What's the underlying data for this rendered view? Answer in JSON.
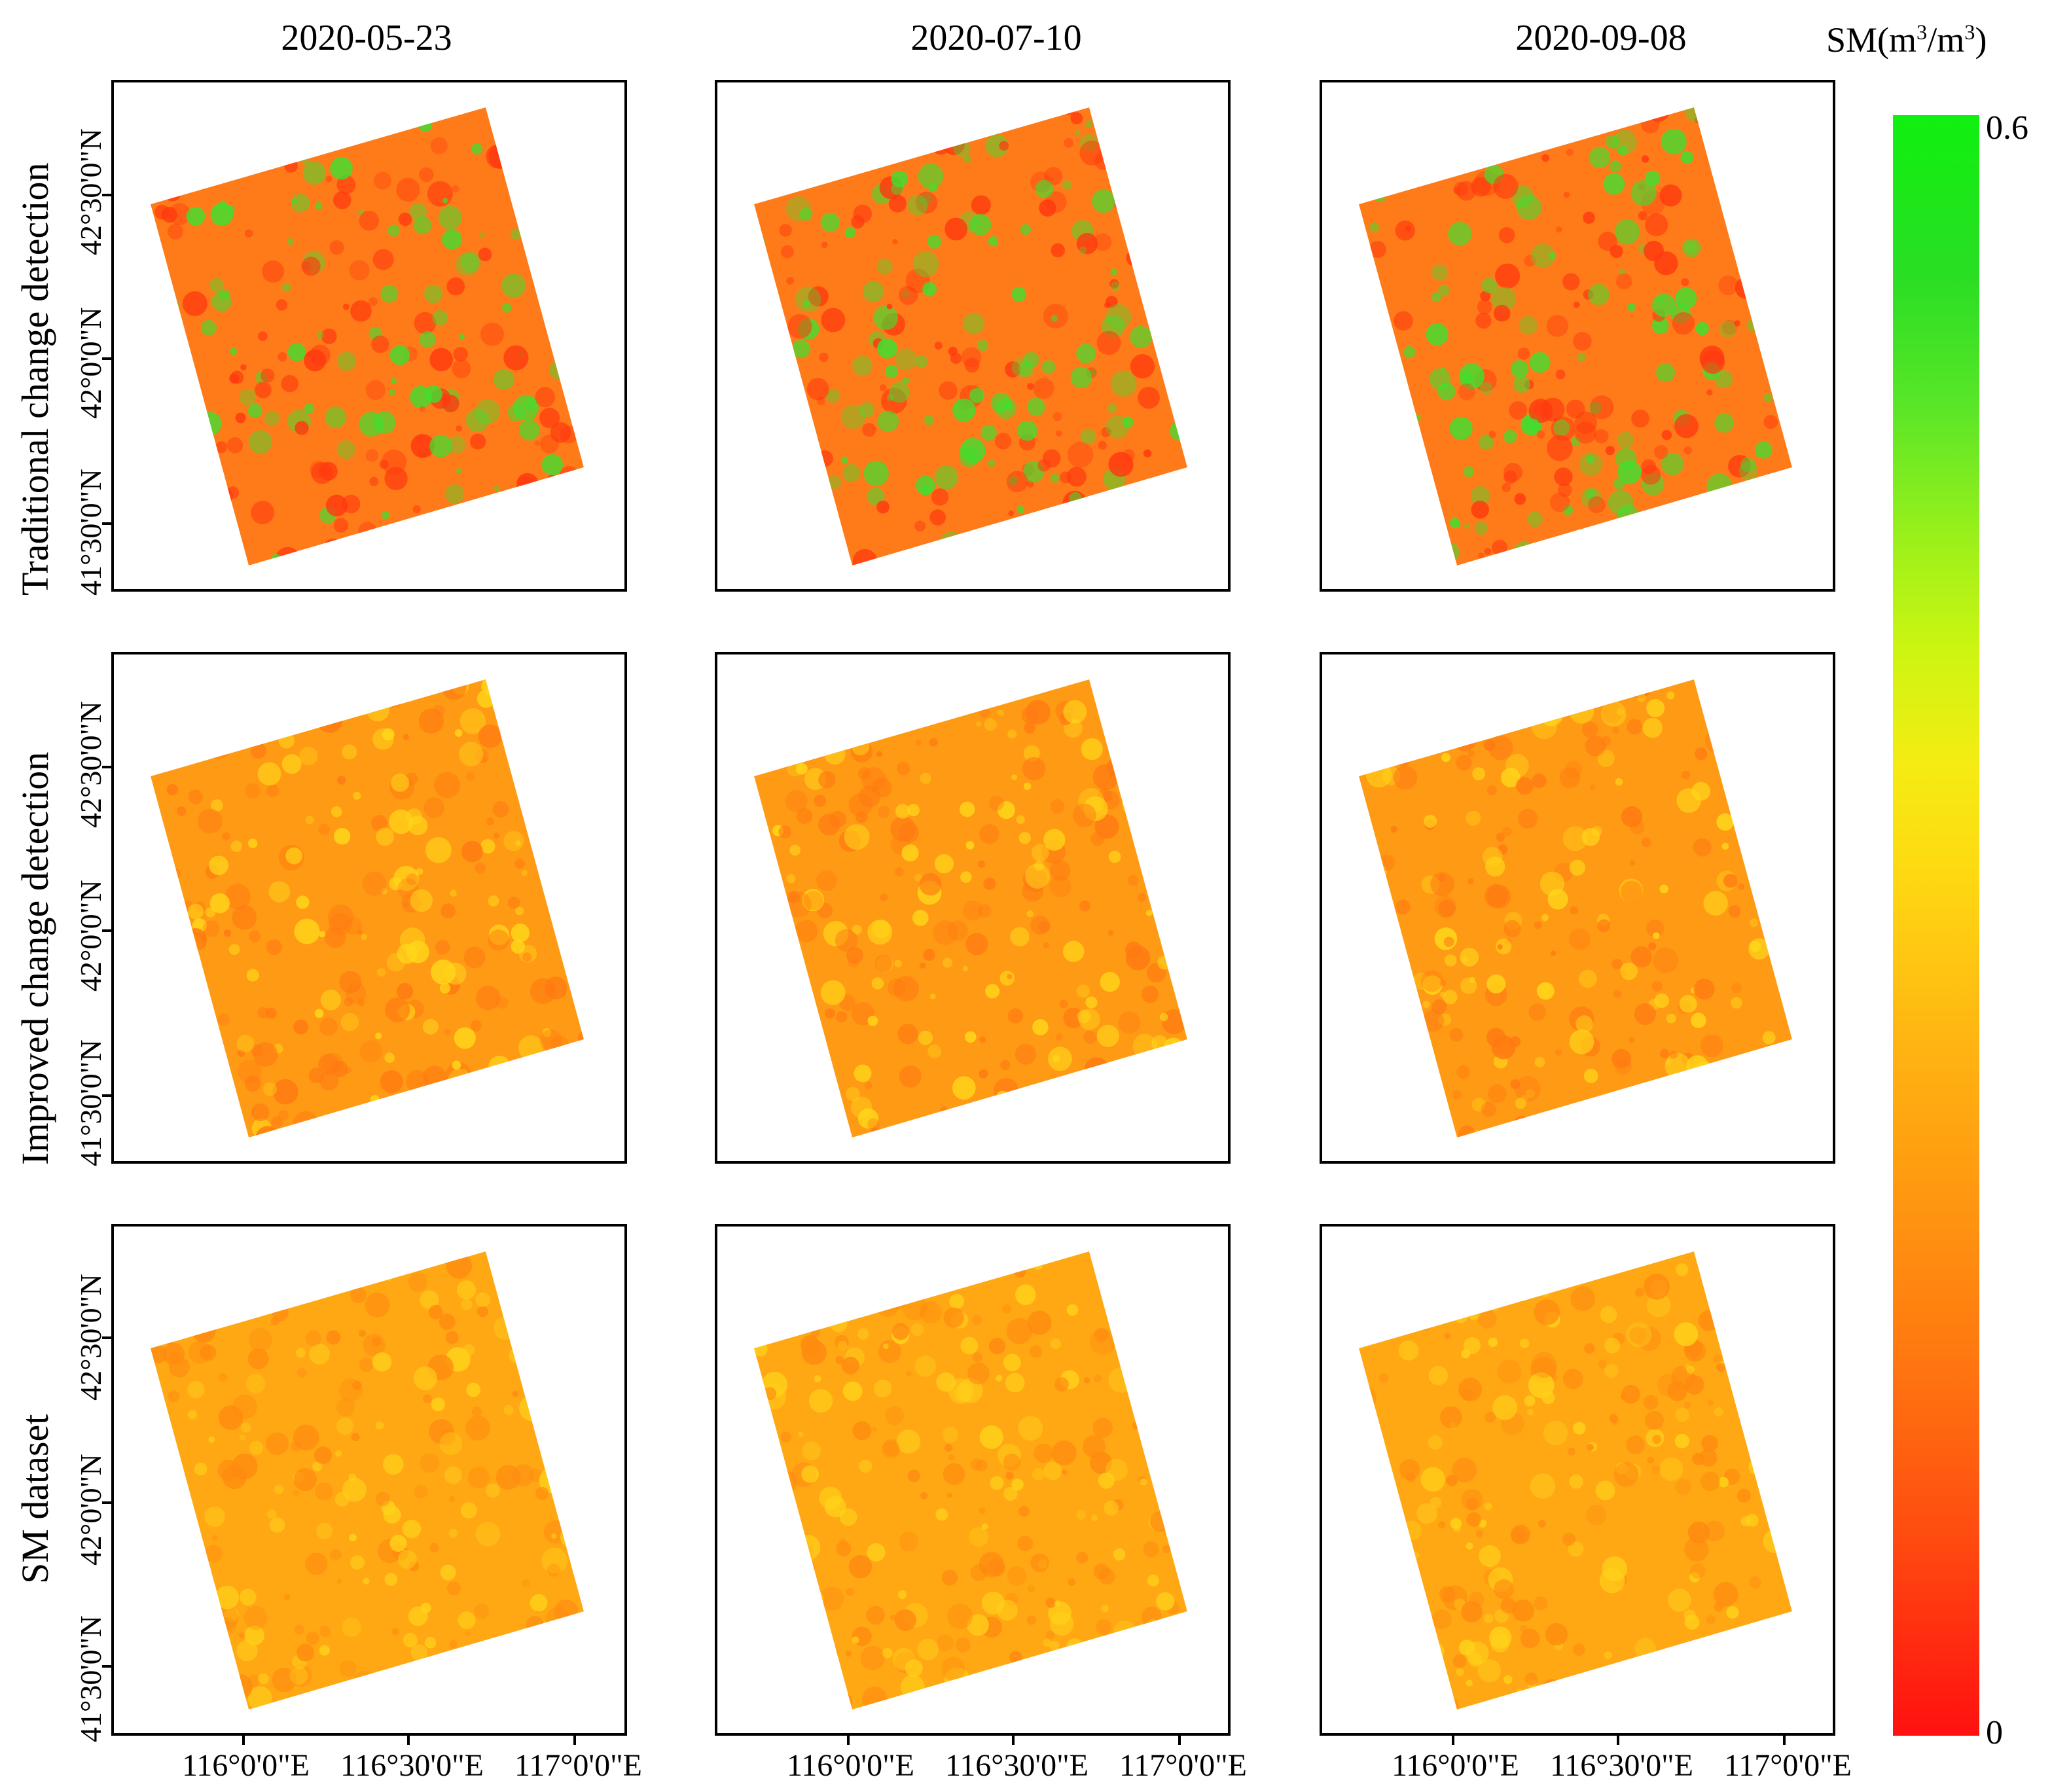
{
  "columns": [
    "2020-05-23",
    "2020-07-10",
    "2020-09-08"
  ],
  "rows": [
    "Traditional change detection",
    "Improved change detection",
    "SM dataset"
  ],
  "latitude_ticks": [
    "42°30'0\"N",
    "42°0'0\"N",
    "41°30'0\"N"
  ],
  "longitude_ticks": [
    "116°0'0\"E",
    "116°30'0\"E",
    "117°0'0\"E"
  ],
  "colorbar": {
    "title_prefix": "SM(m",
    "title_exp1": "3",
    "title_mid": "/m",
    "title_exp2": "3",
    "title_suffix": ")",
    "max_label": "0.6",
    "min_label": "0",
    "min_value": 0,
    "max_value": 0.6,
    "colors": {
      "low": "#ff1010",
      "mid": "#ffd812",
      "high": "#10f010"
    }
  },
  "panel_styles": [
    {
      "base": "#ff7a18",
      "patch": "#3ee030",
      "speckle": "#ff3a10"
    },
    {
      "base": "#ff9a14",
      "patch": "#ffd81a",
      "speckle": "#ff7a12"
    },
    {
      "base": "#ffa814",
      "patch": "#ffd21a",
      "speckle": "#ff8a10"
    }
  ]
}
